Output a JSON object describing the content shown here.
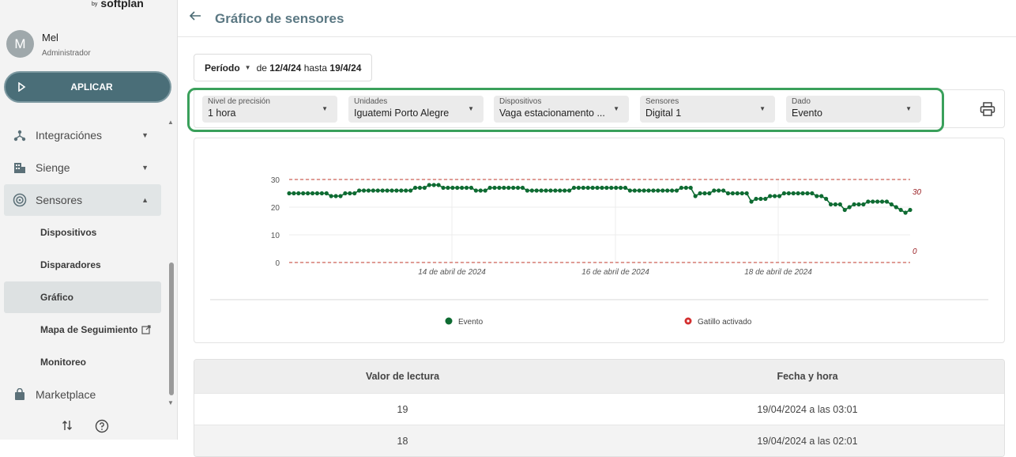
{
  "brand": {
    "by": "by",
    "name": "softplan"
  },
  "user": {
    "initial": "M",
    "name": "Mel",
    "role": "Administrador"
  },
  "apply_label": "APLICAR",
  "nav": {
    "integraciones": "Integraciónes",
    "sienge": "Sienge",
    "sensores": "Sensores",
    "dispositivos": "Dispositivos",
    "disparadores": "Disparadores",
    "grafico": "Gráfico",
    "mapa": "Mapa de Seguimiento",
    "monitoreo": "Monitoreo",
    "marketplace": "Marketplace"
  },
  "header": {
    "title": "Gráfico de sensores"
  },
  "period": {
    "label": "Período",
    "from_text": "de",
    "from": "12/4/24",
    "to_text": "hasta",
    "to": "19/4/24"
  },
  "filters": [
    {
      "label": "Nivel de precisión",
      "value": "1 hora"
    },
    {
      "label": "Unidades",
      "value": "Iguatemi Porto Alegre"
    },
    {
      "label": "Dispositivos",
      "value": "Vaga estacionamento ..."
    },
    {
      "label": "Sensores",
      "value": "Digital 1"
    },
    {
      "label": "Dado",
      "value": "Evento"
    }
  ],
  "chart_data": {
    "type": "line",
    "y_ticks": [
      "0",
      "10",
      "20",
      "30"
    ],
    "ylim": [
      0,
      30
    ],
    "x_ticks": [
      "14 de abril de 2024",
      "16 de abril de 2024",
      "18 de abril de 2024"
    ],
    "series": [
      {
        "name": "Evento",
        "color": "#0e6b32",
        "values": [
          25,
          25,
          25,
          25,
          25,
          25,
          25,
          25,
          25,
          24,
          24,
          24,
          25,
          25,
          25,
          26,
          26,
          26,
          26,
          26,
          26,
          26,
          26,
          26,
          26,
          26,
          26,
          27,
          27,
          27,
          28,
          28,
          28,
          27,
          27,
          27,
          27,
          27,
          27,
          27,
          26,
          26,
          26,
          27,
          27,
          27,
          27,
          27,
          27,
          27,
          27,
          26,
          26,
          26,
          26,
          26,
          26,
          26,
          26,
          26,
          26,
          27,
          27,
          27,
          27,
          27,
          27,
          27,
          27,
          27,
          27,
          27,
          27,
          26,
          26,
          26,
          26,
          26,
          26,
          26,
          26,
          26,
          26,
          26,
          27,
          27,
          27,
          24,
          25,
          25,
          25,
          26,
          26,
          26,
          25,
          25,
          25,
          25,
          25,
          22,
          23,
          23,
          23,
          24,
          24,
          24,
          25,
          25,
          25,
          25,
          25,
          25,
          25,
          24,
          24,
          23,
          21,
          21,
          21,
          19,
          20,
          21,
          21,
          21,
          22,
          22,
          22,
          22,
          22,
          21,
          20,
          19,
          18,
          19
        ]
      }
    ],
    "thresholds": [
      {
        "value": 30,
        "label": "30"
      },
      {
        "value": 0,
        "label": "0"
      }
    ],
    "threshold_color": "#c0392b",
    "legend": [
      {
        "label": "Evento",
        "color": "#0e6b32"
      },
      {
        "label": "Gatillo activado",
        "color": "#d32f2f"
      }
    ],
    "legend_position": "bottom",
    "grid": true
  },
  "table": {
    "headers": [
      "Valor de lectura",
      "Fecha y hora"
    ],
    "rows": [
      [
        "19",
        "19/04/2024 a las 03:01"
      ],
      [
        "18",
        "19/04/2024 a las 02:01"
      ]
    ]
  }
}
